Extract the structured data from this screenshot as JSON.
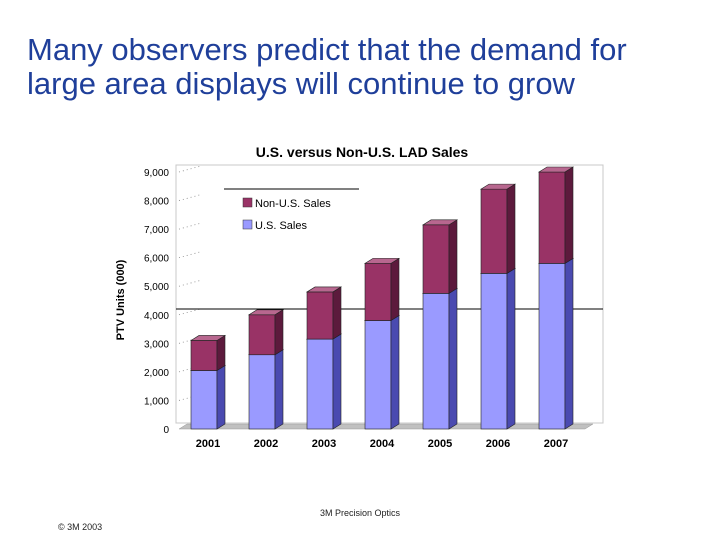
{
  "slide": {
    "title_line1": "Many observers predict that the demand for",
    "title_line2": "large area displays will continue to grow",
    "footer_center": "3M Precision Optics",
    "footer_left": "© 3M 2003"
  },
  "colors": {
    "title": "#1f3f9a",
    "us_front": "#9a9aff",
    "us_side": "#4a4ab0",
    "us_top": "#c8c8ff",
    "nonus_front": "#993366",
    "nonus_side": "#5c1a3c",
    "nonus_top": "#b8678f",
    "floor": "#c0c0c0"
  },
  "chart_data": {
    "type": "bar",
    "stacked": true,
    "title": "U.S. versus Non-U.S. LAD Sales",
    "xlabel": "",
    "ylabel": "PTV Units (000)",
    "ylim": [
      0,
      9000
    ],
    "yticks": [
      "0",
      "1,000",
      "2,000",
      "3,000",
      "4,000",
      "5,000",
      "6,000",
      "7,000",
      "8,000",
      "9,000"
    ],
    "categories": [
      "2001",
      "2002",
      "2003",
      "2004",
      "2005",
      "2006",
      "2007"
    ],
    "series": [
      {
        "name": "U.S. Sales",
        "values": [
          2050,
          2600,
          3150,
          3800,
          4750,
          5450,
          5800
        ]
      },
      {
        "name": "Non-U.S. Sales",
        "values": [
          1050,
          1400,
          1650,
          2000,
          2400,
          2950,
          3200
        ]
      }
    ],
    "legend": [
      "Non-U.S. Sales",
      "U.S. Sales"
    ],
    "legend_position": "top-left"
  }
}
